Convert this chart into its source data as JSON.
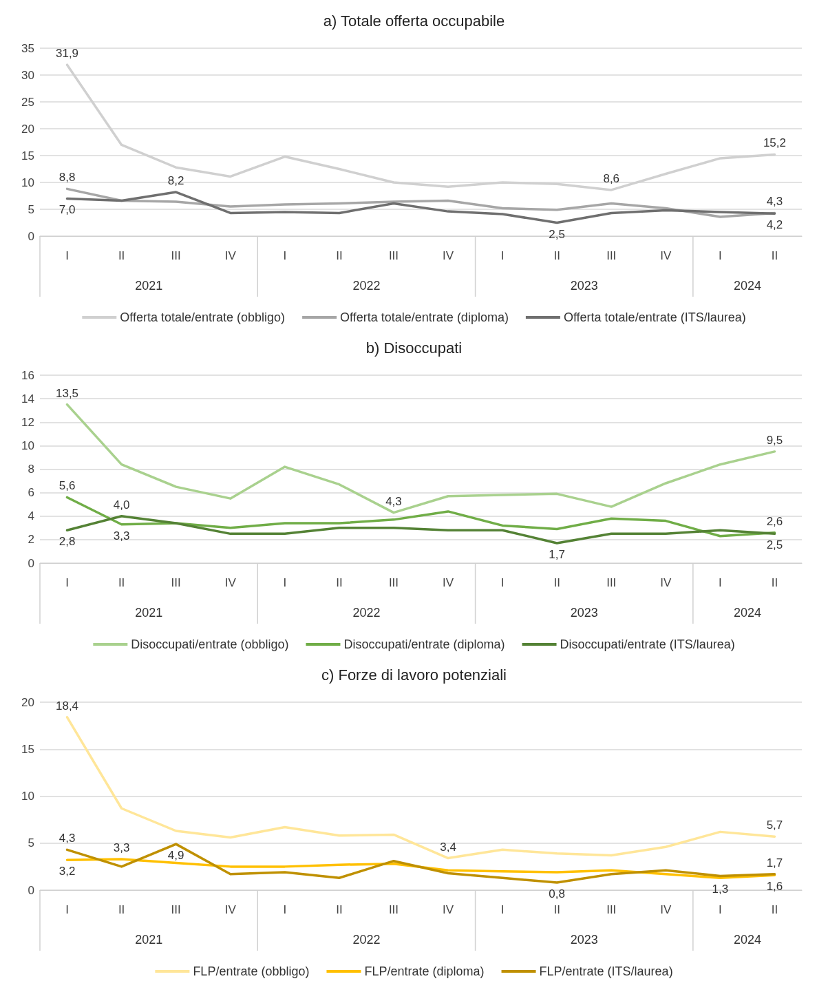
{
  "chart_data": [
    {
      "type": "line",
      "title": "a) Totale offerta occupabile",
      "categories": [
        "I",
        "II",
        "III",
        "IV",
        "I",
        "II",
        "III",
        "IV",
        "I",
        "II",
        "III",
        "IV",
        "I",
        "II"
      ],
      "annotations": [
        "2021",
        "2022",
        "2023",
        "2024"
      ],
      "ylim": [
        0,
        35
      ],
      "yticks": [
        0,
        5,
        10,
        15,
        20,
        25,
        30,
        35
      ],
      "grid": "y",
      "legend": "bottom",
      "marker": "none",
      "line_style": "solid",
      "series": [
        {
          "name": "Offerta totale/entrate (obbligo)",
          "color": "#d0d0d0",
          "values": [
            31.9,
            17.0,
            12.8,
            11.1,
            14.8,
            12.5,
            10.0,
            9.2,
            10.0,
            9.7,
            8.6,
            11.6,
            14.5,
            15.2
          ],
          "value_labels": [
            "31,9",
            null,
            null,
            null,
            null,
            null,
            null,
            null,
            null,
            null,
            "8,6",
            null,
            null,
            "15,2"
          ]
        },
        {
          "name": "Offerta totale/entrate (diploma)",
          "color": "#a6a6a6",
          "values": [
            8.8,
            6.6,
            6.4,
            5.5,
            5.9,
            6.1,
            6.4,
            6.6,
            5.2,
            4.9,
            6.1,
            5.2,
            3.6,
            4.3
          ],
          "value_labels": [
            "8,8",
            null,
            null,
            null,
            null,
            null,
            null,
            null,
            null,
            null,
            null,
            null,
            null,
            "4,3"
          ]
        },
        {
          "name": "Offerta totale/entrate (ITS/laurea)",
          "color": "#6f6f6f",
          "values": [
            7.0,
            6.6,
            8.2,
            4.3,
            4.5,
            4.3,
            6.1,
            4.6,
            4.1,
            2.5,
            4.3,
            4.8,
            4.5,
            4.2
          ],
          "value_labels": [
            "7,0",
            null,
            "8,2",
            null,
            null,
            null,
            null,
            null,
            null,
            "2,5",
            null,
            null,
            null,
            "4,2"
          ]
        }
      ]
    },
    {
      "type": "line",
      "title": "b) Disoccupati",
      "categories": [
        "I",
        "II",
        "III",
        "IV",
        "I",
        "II",
        "III",
        "IV",
        "I",
        "II",
        "III",
        "IV",
        "I",
        "II"
      ],
      "annotations": [
        "2021",
        "2022",
        "2023",
        "2024"
      ],
      "ylim": [
        0,
        16
      ],
      "yticks": [
        0,
        2,
        4,
        6,
        8,
        10,
        12,
        14,
        16
      ],
      "grid": "y",
      "legend": "bottom",
      "marker": "none",
      "line_style": "solid",
      "series": [
        {
          "name": "Disoccupati/entrate (obbligo)",
          "color": "#a9d18e",
          "values": [
            13.5,
            8.4,
            6.5,
            5.5,
            8.2,
            6.7,
            4.3,
            5.7,
            5.8,
            5.9,
            4.8,
            6.8,
            8.4,
            9.5
          ],
          "value_labels": [
            "13,5",
            null,
            null,
            null,
            null,
            null,
            "4,3",
            null,
            null,
            null,
            null,
            null,
            null,
            "9,5"
          ]
        },
        {
          "name": "Disoccupati/entrate (diploma)",
          "color": "#70ad47",
          "values": [
            5.6,
            3.3,
            3.4,
            3.0,
            3.4,
            3.4,
            3.7,
            4.4,
            3.2,
            2.9,
            3.8,
            3.6,
            2.3,
            2.6
          ],
          "value_labels": [
            "5,6",
            "3,3",
            null,
            null,
            null,
            null,
            null,
            null,
            null,
            null,
            null,
            null,
            null,
            "2,6"
          ]
        },
        {
          "name": "Disoccupati/entrate (ITS/laurea)",
          "color": "#548235",
          "values": [
            2.8,
            4.0,
            3.4,
            2.5,
            2.5,
            3.0,
            3.0,
            2.8,
            2.8,
            1.7,
            2.5,
            2.5,
            2.8,
            2.5
          ],
          "value_labels": [
            "2,8",
            "4,0",
            null,
            null,
            null,
            null,
            null,
            null,
            null,
            "1,7",
            null,
            null,
            null,
            "2,5"
          ]
        }
      ]
    },
    {
      "type": "line",
      "title": "c) Forze di lavoro potenziali",
      "categories": [
        "I",
        "II",
        "III",
        "IV",
        "I",
        "II",
        "III",
        "IV",
        "I",
        "II",
        "III",
        "IV",
        "I",
        "II"
      ],
      "annotations": [
        "2021",
        "2022",
        "2023",
        "2024"
      ],
      "ylim": [
        0,
        20
      ],
      "yticks": [
        0,
        5,
        10,
        15,
        20
      ],
      "grid": "y",
      "legend": "bottom",
      "marker": "none",
      "line_style": "solid",
      "series": [
        {
          "name": "FLP/entrate (obbligo)",
          "color": "#ffe699",
          "values": [
            18.4,
            8.7,
            6.3,
            5.6,
            6.7,
            5.8,
            5.9,
            3.4,
            4.3,
            3.9,
            3.7,
            4.6,
            6.2,
            5.7
          ],
          "value_labels": [
            "18,4",
            null,
            null,
            null,
            null,
            null,
            null,
            "3,4",
            null,
            null,
            null,
            null,
            null,
            "5,7"
          ]
        },
        {
          "name": "FLP/entrate (diploma)",
          "color": "#ffc000",
          "values": [
            3.2,
            3.3,
            2.9,
            2.5,
            2.5,
            2.7,
            2.8,
            2.1,
            2.0,
            1.9,
            2.1,
            1.7,
            1.3,
            1.6
          ],
          "value_labels": [
            "3,2",
            "3,3",
            null,
            null,
            null,
            null,
            null,
            null,
            null,
            null,
            null,
            null,
            "1,3",
            "1,6"
          ]
        },
        {
          "name": "FLP/entrate (ITS/laurea)",
          "color": "#bf9000",
          "values": [
            4.3,
            2.5,
            4.9,
            1.7,
            1.9,
            1.3,
            3.1,
            1.8,
            1.3,
            0.8,
            1.7,
            2.1,
            1.5,
            1.7
          ],
          "value_labels": [
            "4,3",
            null,
            "4,9",
            null,
            null,
            null,
            null,
            null,
            null,
            "0,8",
            null,
            null,
            null,
            "1,7"
          ]
        }
      ]
    }
  ]
}
